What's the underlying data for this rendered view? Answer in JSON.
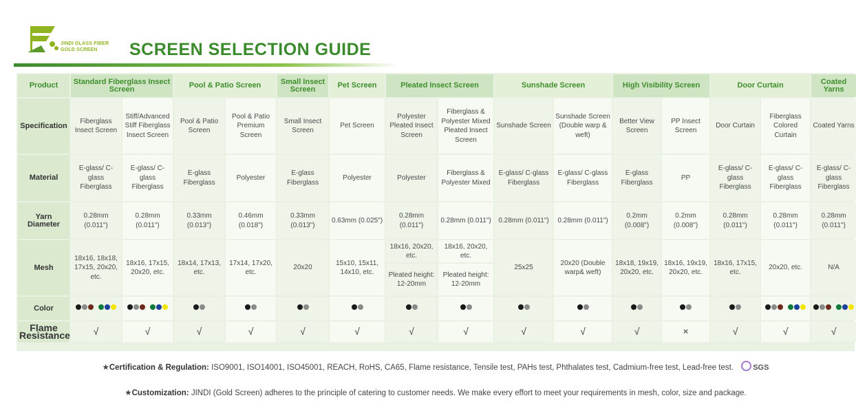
{
  "brand": {
    "line1": "JINDI GLASS FIBER",
    "line2": "GOLD SCREEN"
  },
  "title": "SCREEN SELECTION GUIDE",
  "row_labels": {
    "product": "Product",
    "specification": "Specification",
    "material": "Material",
    "yarn": "Yarn Diameter",
    "mesh": "Mesh",
    "color": "Color",
    "flame": "Flame Resistance"
  },
  "products": [
    "Standard Fiberglass Insect Screen",
    "Pool & Patio  Screen",
    "Small Insect Screen",
    "Pet Screen",
    "Pleated Insect Screen",
    "Sunshade Screen",
    "High Visibility Screen",
    "Door Curtain",
    "Coated Yarns"
  ],
  "columns": [
    {
      "spec": "Fiberglass Insect Screen",
      "material": "E-glass/ C-glass Fiberglass",
      "yarn": "0.28mm (0.011\")",
      "mesh": "18x16, 18x18, 17x15, 20x20, etc.",
      "flame": "√"
    },
    {
      "spec": "Stiff/Advanced Stiff Fiberglass Insect Screen",
      "material": "E-glass/ C-glass Fiberglass",
      "yarn": "0.28mm (0.011\")",
      "mesh": "18x16, 17x15, 20x20, etc.",
      "flame": "√"
    },
    {
      "spec": "Pool & Patio Screen",
      "material": "E-glass Fiberglass",
      "yarn": "0.33mm (0.013\")",
      "mesh": "18x14, 17x13, etc.",
      "flame": "√"
    },
    {
      "spec": "Pool & Patio Premium Screen",
      "material": "Polyester",
      "yarn": "0.46mm (0.018\")",
      "mesh": "17x14, 17x20, etc.",
      "flame": "√"
    },
    {
      "spec": "Small Insect Screen",
      "material": "E-glass Fiberglass",
      "yarn": "0.33mm (0.013\")",
      "mesh": "20x20",
      "flame": "√"
    },
    {
      "spec": "Pet Screen",
      "material": "Polyester",
      "yarn": "0.63mm (0.025\")",
      "mesh": "15x10, 15x11, 14x10, etc.",
      "flame": "√"
    },
    {
      "spec": "Polyester Pleated Insect Screen",
      "material": "Polyester",
      "yarn": "0.28mm (0.011\")",
      "mesh_top": "18x16, 20x20, etc.",
      "mesh_bottom": "Pleated height: 12-20mm",
      "flame": "√"
    },
    {
      "spec": "Fiberglass & Polyester Mixed Pleated Insect Screen",
      "material": "Fiberglass & Polyester Mixed",
      "yarn": "0.28mm (0.011\")",
      "mesh_top": "18x16, 20x20, etc.",
      "mesh_bottom": "Pleated height: 12-20mm",
      "flame": "√"
    },
    {
      "spec": "Sunshade Screen",
      "material": "E-glass/ C-glass Fiberglass",
      "yarn": "0.28mm (0.011\")",
      "mesh": "25x25",
      "flame": "√"
    },
    {
      "spec": "Sunshade Screen (Double warp & weft)",
      "material": "E-glass/ C-glass Fiberglass",
      "yarn": "0.28mm (0.011\")",
      "mesh": "20x20 (Double warp& weft)",
      "flame": "√"
    },
    {
      "spec": "Better View Screen",
      "material": "E-glass Fiberglass",
      "yarn": "0.2mm (0.008\")",
      "mesh": "18x18, 19x19, 20x20, etc.",
      "flame": "√"
    },
    {
      "spec": "PP Insect Screen",
      "material": "PP",
      "yarn": "0.2mm (0.008\")",
      "mesh": "18x16, 19x19, 20x20, etc.",
      "flame": "×"
    },
    {
      "spec": "Door Curtain",
      "material": "E-glass/ C-glass Fiberglass",
      "yarn": "0.28mm (0.011\")",
      "mesh": "18x16, 17x15, etc.",
      "flame": "√"
    },
    {
      "spec": "Fiberglass Colored Curtain",
      "material": "E-glass/ C-glass Fiberglass",
      "yarn": "0.28mm (0.011\")",
      "mesh": "20x20, etc.",
      "flame": "√"
    },
    {
      "spec": "Coated Yarns",
      "material": "E-glass/ C-glass Fiberglass",
      "yarn": "0.28mm (0.011\")",
      "mesh": "N/A",
      "flame": "√"
    }
  ],
  "colors": {
    "black": "#1a1a1a",
    "grey": "#8a8a8a",
    "brown": "#6b2a1a",
    "green": "#0f7a3c",
    "blue": "#1c3f9a",
    "yellow": "#f2e600"
  },
  "footer": {
    "cert_label": "Certification & Regulation:",
    "cert_text": "ISO9001, ISO14001, ISO45001, REACH, RoHS, CA65, Flame resistance, Tensile test, PAHs test, Phthalates test, Cadmium-free test, Lead-free test.",
    "sgs": "SGS",
    "custom_label": "Customization:",
    "custom_text": "JINDI (Gold Screen) adheres to the principle of catering to customer needs. We make every effort to meet your requirements in mesh, color, size and package."
  }
}
